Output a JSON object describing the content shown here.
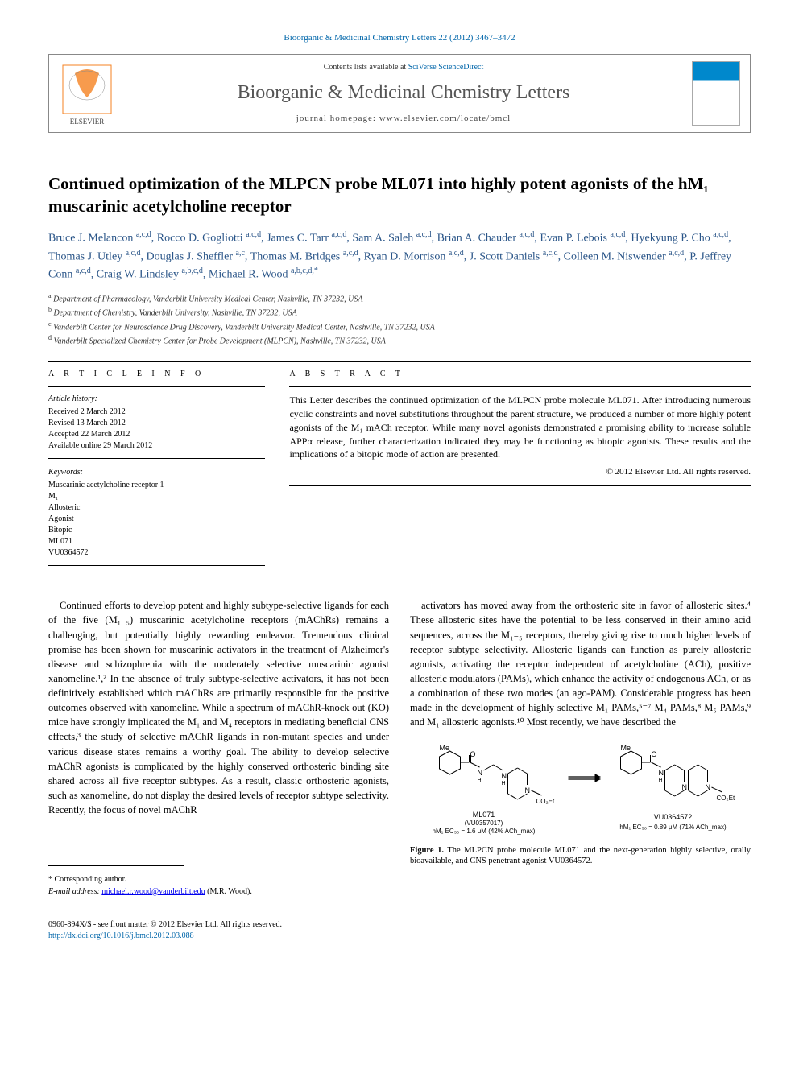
{
  "header": {
    "citation": "Bioorganic & Medicinal Chemistry Letters 22 (2012) 3467–3472"
  },
  "contents_box": {
    "available_text": "Contents lists available at ",
    "available_link": "SciVerse ScienceDirect",
    "journal_name": "Bioorganic & Medicinal Chemistry Letters",
    "homepage_label": "journal homepage: www.elsevier.com/locate/bmcl"
  },
  "article": {
    "title": "Continued optimization of the MLPCN probe ML071 into highly potent agonists of the hM₁ muscarinic acetylcholine receptor",
    "authors_html": "Bruce J. Melancon <sup>a,c,d</sup>, Rocco D. Gogliotti <sup>a,c,d</sup>, James C. Tarr <sup>a,c,d</sup>, Sam A. Saleh <sup>a,c,d</sup>, Brian A. Chauder <sup>a,c,d</sup>, Evan P. Lebois <sup>a,c,d</sup>, Hyekyung P. Cho <sup>a,c,d</sup>, Thomas J. Utley <sup>a,c,d</sup>, Douglas J. Sheffler <sup>a,c</sup>, Thomas M. Bridges <sup>a,c,d</sup>, Ryan D. Morrison <sup>a,c,d</sup>, J. Scott Daniels <sup>a,c,d</sup>, Colleen M. Niswender <sup>a,c,d</sup>, P. Jeffrey Conn <sup>a,c,d</sup>, Craig W. Lindsley <sup>a,b,c,d</sup>, Michael R. Wood <sup>a,b,c,d,*</sup>",
    "affiliations": [
      "Department of Pharmacology, Vanderbilt University Medical Center, Nashville, TN 37232, USA",
      "Department of Chemistry, Vanderbilt University, Nashville, TN 37232, USA",
      "Vanderbilt Center for Neuroscience Drug Discovery, Vanderbilt University Medical Center, Nashville, TN 37232, USA",
      "Vanderbilt Specialized Chemistry Center for Probe Development (MLPCN), Nashville, TN 37232, USA"
    ],
    "aff_labels": [
      "a",
      "b",
      "c",
      "d"
    ]
  },
  "article_info": {
    "heading": "A R T I C L E   I N F O",
    "history_heading": "Article history:",
    "history": [
      "Received 2 March 2012",
      "Revised 13 March 2012",
      "Accepted 22 March 2012",
      "Available online 29 March 2012"
    ],
    "keywords_heading": "Keywords:",
    "keywords": [
      "Muscarinic acetylcholine receptor 1",
      "M₁",
      "Allosteric",
      "Agonist",
      "Bitopic",
      "ML071",
      "VU0364572"
    ]
  },
  "abstract": {
    "heading": "A B S T R A C T",
    "text": "This Letter describes the continued optimization of the MLPCN probe molecule ML071. After introducing numerous cyclic constraints and novel substitutions throughout the parent structure, we produced a number of more highly potent agonists of the M₁ mACh receptor. While many novel agonists demonstrated a promising ability to increase soluble APPα release, further characterization indicated they may be functioning as bitopic agonists. These results and the implications of a bitopic mode of action are presented.",
    "copyright": "© 2012 Elsevier Ltd. All rights reserved."
  },
  "body": {
    "col1": "Continued efforts to develop potent and highly subtype-selective ligands for each of the five (M₁₋₅) muscarinic acetylcholine receptors (mAChRs) remains a challenging, but potentially highly rewarding endeavor. Tremendous clinical promise has been shown for muscarinic activators in the treatment of Alzheimer's disease and schizophrenia with the moderately selective muscarinic agonist xanomeline.¹,² In the absence of truly subtype-selective activators, it has not been definitively established which mAChRs are primarily responsible for the positive outcomes observed with xanomeline. While a spectrum of mAChR-knock out (KO) mice have strongly implicated the M₁ and M₄ receptors in mediating beneficial CNS effects,³ the study of selective mAChR ligands in non-mutant species and under various disease states remains a worthy goal. The ability to develop selective mAChR agonists is complicated by the highly conserved orthosteric binding site shared across all five receptor subtypes. As a result, classic orthosteric agonists, such as xanomeline, do not display the desired levels of receptor subtype selectivity. Recently, the focus of novel mAChR",
    "col2": "activators has moved away from the orthosteric site in favor of allosteric sites.⁴ These allosteric sites have the potential to be less conserved in their amino acid sequences, across the M₁₋₅ receptors, thereby giving rise to much higher levels of receptor subtype selectivity. Allosteric ligands can function as purely allosteric agonists, activating the receptor independent of acetylcholine (ACh), positive allosteric modulators (PAMs), which enhance the activity of endogenous ACh, or as a combination of these two modes (an ago-PAM). Considerable progress has been made in the development of highly selective M₁ PAMs,⁵⁻⁷ M₄ PAMs,⁸ M₅ PAMs,⁹ and M₁ allosteric agonists.¹⁰ Most recently, we have described the"
  },
  "figure1": {
    "label_left_1": "ML071",
    "label_left_2": "(VU0357017)",
    "label_left_3": "hM₁ EC₅₀ = 1.6 μM (42% ACh_max)",
    "label_right_1": "VU0364572",
    "label_right_2": "hM₁ EC₅₀ = 0.89 μM (71% ACh_max)",
    "me_label": "Me",
    "co2et_label": "CO₂Et",
    "o_label": "O",
    "n_label": "N",
    "h_label": "H",
    "caption_bold": "Figure 1.",
    "caption_text": " The MLPCN probe molecule ML071 and the next-generation highly selective, orally bioavailable, and CNS penetrant agonist VU0364572."
  },
  "corresp": {
    "star": "* Corresponding author.",
    "email_label": "E-mail address:",
    "email": "michael.r.wood@vanderbilt.edu",
    "email_name": "(M.R. Wood)."
  },
  "footer": {
    "line1": "0960-894X/$ - see front matter © 2012 Elsevier Ltd. All rights reserved.",
    "doi_label": "http://dx.doi.org/10.1016/j.bmcl.2012.03.088"
  },
  "colors": {
    "link": "#0066aa",
    "author": "#2a5588"
  }
}
